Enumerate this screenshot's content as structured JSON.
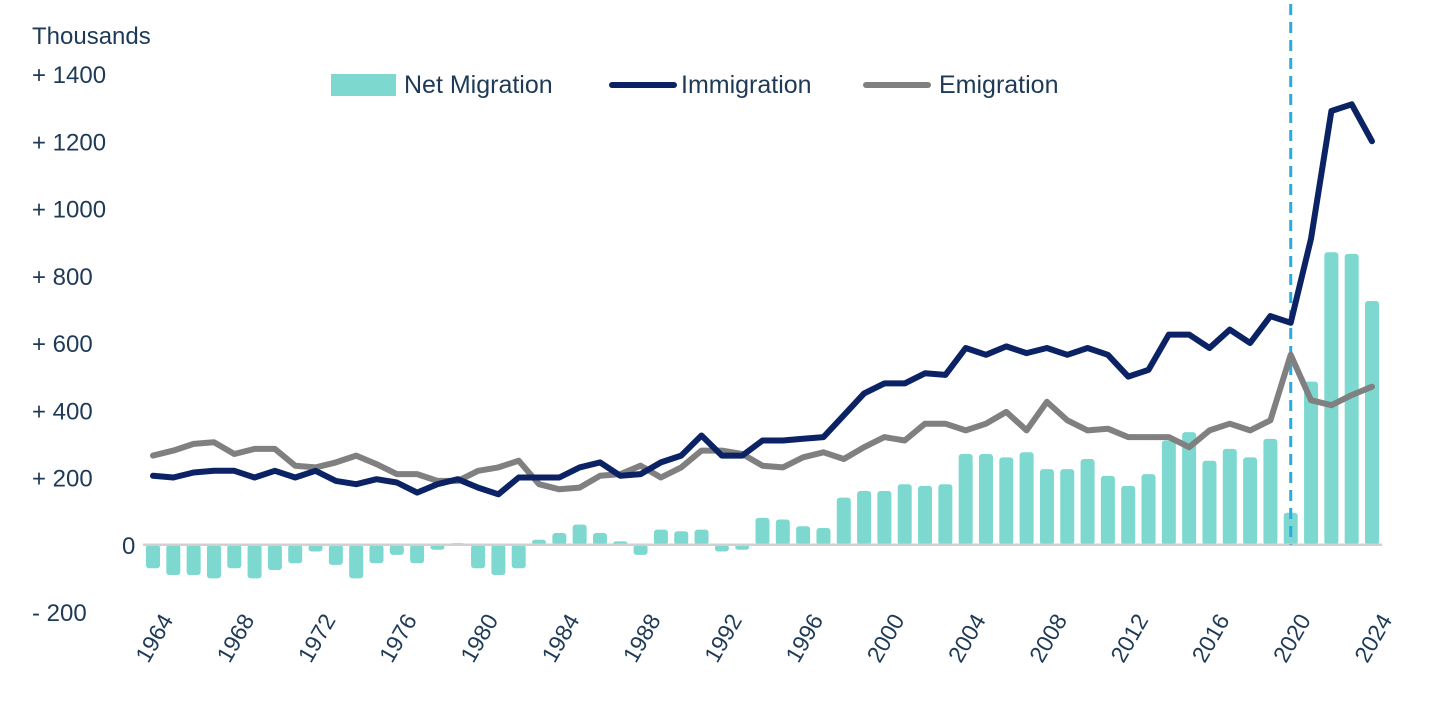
{
  "chart_data": {
    "type": "bar+line",
    "ylabel": "Thousands",
    "ylim": [
      -200,
      1400
    ],
    "yticks": [
      1400,
      1200,
      1000,
      800,
      600,
      400,
      200,
      0,
      -200
    ],
    "ytick_labels": [
      "+ 1400",
      "+ 1200",
      "+ 1000",
      "+  800",
      "+  600",
      "+  400",
      "+  200",
      "0",
      "-  200"
    ],
    "x": [
      1964,
      1965,
      1966,
      1967,
      1968,
      1969,
      1970,
      1971,
      1972,
      1973,
      1974,
      1975,
      1976,
      1977,
      1978,
      1979,
      1980,
      1981,
      1982,
      1983,
      1984,
      1985,
      1986,
      1987,
      1988,
      1989,
      1990,
      1991,
      1992,
      1993,
      1994,
      1995,
      1996,
      1997,
      1998,
      1999,
      2000,
      2001,
      2002,
      2003,
      2004,
      2005,
      2006,
      2007,
      2008,
      2009,
      2010,
      2011,
      2012,
      2013,
      2014,
      2015,
      2016,
      2017,
      2018,
      2019,
      2020,
      2021,
      2022,
      2023,
      2024
    ],
    "xtick_labels": [
      "1964",
      "1968",
      "1972",
      "1976",
      "1980",
      "1984",
      "1988",
      "1992",
      "1996",
      "2000",
      "2004",
      "2008",
      "2012",
      "2016",
      "2020",
      "2024"
    ],
    "vertical_marker": 2020,
    "legend_position": "top",
    "series": [
      {
        "name": "Net Migration",
        "kind": "bar",
        "color": "#7dd8cf",
        "values": [
          -70,
          -90,
          -90,
          -100,
          -70,
          -100,
          -75,
          -55,
          -20,
          -60,
          -100,
          -55,
          -30,
          -55,
          -15,
          5,
          -70,
          -90,
          -70,
          15,
          35,
          60,
          35,
          10,
          -30,
          45,
          40,
          45,
          -20,
          -15,
          80,
          75,
          55,
          50,
          140,
          160,
          160,
          180,
          175,
          180,
          270,
          270,
          260,
          275,
          225,
          225,
          255,
          205,
          175,
          210,
          310,
          335,
          250,
          285,
          260,
          315,
          95,
          485,
          870,
          865,
          725
        ]
      },
      {
        "name": "Immigration",
        "kind": "line",
        "color": "#0b2265",
        "values": [
          205,
          200,
          215,
          220,
          220,
          200,
          220,
          200,
          220,
          190,
          180,
          195,
          185,
          155,
          180,
          195,
          170,
          150,
          200,
          200,
          200,
          230,
          245,
          205,
          210,
          245,
          265,
          325,
          265,
          265,
          310,
          310,
          315,
          320,
          385,
          450,
          480,
          480,
          510,
          505,
          585,
          565,
          590,
          570,
          585,
          565,
          585,
          565,
          500,
          520,
          625,
          625,
          585,
          640,
          600,
          680,
          660,
          910,
          1290,
          1310,
          1200
        ]
      },
      {
        "name": "Emigration",
        "kind": "line",
        "color": "#808080",
        "values": [
          265,
          280,
          300,
          305,
          270,
          285,
          285,
          235,
          230,
          245,
          265,
          240,
          210,
          210,
          190,
          190,
          220,
          230,
          250,
          180,
          165,
          170,
          205,
          210,
          235,
          200,
          230,
          280,
          280,
          270,
          235,
          230,
          260,
          275,
          255,
          290,
          320,
          310,
          360,
          360,
          340,
          360,
          395,
          340,
          425,
          370,
          340,
          345,
          320,
          320,
          320,
          290,
          340,
          360,
          340,
          370,
          565,
          430,
          415,
          445,
          470
        ]
      }
    ]
  }
}
